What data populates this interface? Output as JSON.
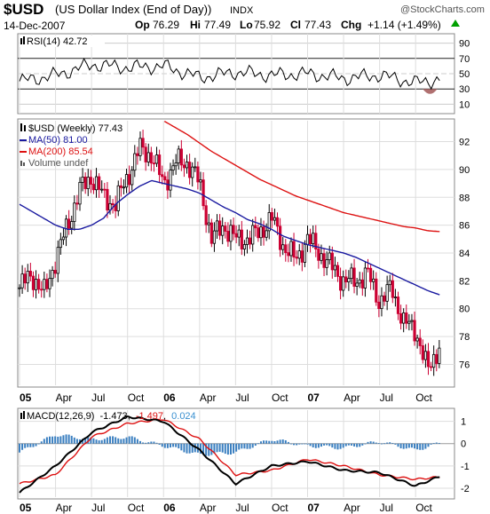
{
  "header": {
    "symbol": "$USD",
    "description": "(US Dollar Index (End of Day))",
    "exchange": "INDX",
    "watermark": "@StockCharts.com",
    "date": "14-Dec-2007",
    "ohlc": [
      {
        "label": "Op",
        "value": "76.29"
      },
      {
        "label": "Hi",
        "value": "77.49"
      },
      {
        "label": "Lo",
        "value": "75.92"
      },
      {
        "label": "Cl",
        "value": "77.43"
      },
      {
        "label": "Chg",
        "value": "+1.14 (+1.49%)"
      }
    ],
    "change_direction": "up",
    "colors": {
      "up": "#00a000"
    }
  },
  "rsi": {
    "label": "RSI(14) 42.72",
    "ticks": [
      "90",
      "70",
      "50",
      "30",
      "10"
    ],
    "colors": {
      "line": "#000000",
      "oversold_fill": "#b07070",
      "bands": "#000000"
    }
  },
  "main": {
    "legend": [
      {
        "text": "$USD (Weekly) 77.43",
        "color": "#000000",
        "icon": "candle-icon"
      },
      {
        "text": "MA(50) 81.00",
        "color": "#1a1aa0"
      },
      {
        "text": "MA(200) 85.54",
        "color": "#dd1111"
      },
      {
        "text": "Volume undef",
        "color": "#555555",
        "icon": "volume-icon"
      }
    ],
    "y_ticks": [
      "92",
      "90",
      "88",
      "86",
      "84",
      "82",
      "80",
      "78",
      "76"
    ],
    "x_ticks": [
      "05",
      "Apr",
      "Jul",
      "Oct",
      "06",
      "Apr",
      "Jul",
      "Oct",
      "07",
      "Apr",
      "Jul",
      "Oct"
    ],
    "colors": {
      "up_candle": "#000000",
      "down_candle": "#cc0033",
      "ma50": "#1a1aa0",
      "ma200": "#dd1111"
    }
  },
  "macd": {
    "label_prefix": "MACD(12,26,9)",
    "macd_value": "-1.473",
    "signal_value": "-1.497",
    "hist_value": "0.024",
    "ticks": [
      "1",
      "0",
      "-1",
      "-2"
    ],
    "x_ticks": [
      "05",
      "Apr",
      "Jul",
      "Oct",
      "06",
      "Apr",
      "Jul",
      "Oct",
      "07",
      "Apr",
      "Jul",
      "Oct"
    ],
    "colors": {
      "macd": "#000000",
      "signal": "#dd1111",
      "hist": "#3a7fc0",
      "hist_text": "#3a90d0"
    }
  },
  "chart_data": [
    {
      "type": "line",
      "title": "RSI(14) 42.72",
      "x": [
        "2005-01",
        "2005-04",
        "2005-07",
        "2005-10",
        "2006-01",
        "2006-04",
        "2006-07",
        "2006-10",
        "2007-01",
        "2007-04",
        "2007-07",
        "2007-10",
        "2007-12"
      ],
      "series": [
        {
          "name": "RSI(14)",
          "values": [
            40,
            48,
            62,
            58,
            60,
            45,
            52,
            48,
            50,
            44,
            48,
            38,
            42.72
          ]
        }
      ],
      "ylim": [
        0,
        100
      ],
      "grid": true
    },
    {
      "type": "line",
      "title": "$USD (Weekly) 77.43",
      "x": [
        "2005-01",
        "2005-02",
        "2005-03",
        "2005-04",
        "2005-05",
        "2005-06",
        "2005-07",
        "2005-08",
        "2005-09",
        "2005-10",
        "2005-11",
        "2005-12",
        "2006-01",
        "2006-02",
        "2006-03",
        "2006-04",
        "2006-05",
        "2006-06",
        "2006-07",
        "2006-08",
        "2006-09",
        "2006-10",
        "2006-11",
        "2006-12",
        "2007-01",
        "2007-02",
        "2007-03",
        "2007-04",
        "2007-05",
        "2007-06",
        "2007-07",
        "2007-08",
        "2007-09",
        "2007-10",
        "2007-11",
        "2007-12"
      ],
      "series": [
        {
          "name": "$USD (Weekly) 77.43",
          "values": [
            81.5,
            82.5,
            81.0,
            83.5,
            86.0,
            88.5,
            89.5,
            88.0,
            87.5,
            89.5,
            91.5,
            91.0,
            89.0,
            90.5,
            90.5,
            89.0,
            85.0,
            86.0,
            85.0,
            85.0,
            85.5,
            86.5,
            84.5,
            83.5,
            85.0,
            84.0,
            83.0,
            82.0,
            82.0,
            82.5,
            80.5,
            81.5,
            79.0,
            78.5,
            75.5,
            77.43
          ]
        },
        {
          "name": "MA(50) 81.00",
          "values": [
            87.5,
            87.0,
            86.5,
            86.0,
            85.7,
            85.7,
            86.0,
            86.5,
            87.5,
            88.2,
            88.8,
            89.2,
            89.0,
            88.8,
            88.6,
            88.3,
            87.8,
            87.3,
            86.9,
            86.4,
            86.1,
            85.7,
            85.2,
            84.9,
            84.6,
            84.4,
            84.2,
            84.0,
            83.7,
            83.3,
            82.9,
            82.5,
            82.1,
            81.7,
            81.3,
            81.0
          ]
        },
        {
          "name": "MA(200) 85.54",
          "values": [
            null,
            null,
            null,
            null,
            null,
            null,
            null,
            null,
            null,
            null,
            null,
            null,
            93.5,
            93.0,
            92.5,
            91.9,
            91.3,
            90.8,
            90.3,
            89.8,
            89.3,
            88.9,
            88.5,
            88.1,
            87.8,
            87.5,
            87.2,
            86.9,
            86.7,
            86.5,
            86.3,
            86.1,
            85.9,
            85.8,
            85.6,
            85.54
          ]
        }
      ],
      "ylim": [
        74.5,
        93.5
      ],
      "xlabel": "",
      "ylabel": "",
      "grid": true,
      "legend": "top-left"
    },
    {
      "type": "line",
      "title": "MACD(12,26,9) -1.473, -1.497, 0.024",
      "x": [
        "2005-01",
        "2005-04",
        "2005-07",
        "2005-10",
        "2006-01",
        "2006-04",
        "2006-07",
        "2006-10",
        "2007-01",
        "2007-04",
        "2007-07",
        "2007-10",
        "2007-12"
      ],
      "series": [
        {
          "name": "MACD",
          "values": [
            -2.2,
            -1.0,
            0.5,
            1.2,
            1.0,
            -0.3,
            -1.8,
            -1.0,
            -0.8,
            -1.2,
            -1.3,
            -1.9,
            -1.473
          ]
        },
        {
          "name": "Signal",
          "values": [
            -1.8,
            -1.4,
            0.3,
            0.9,
            1.1,
            0.2,
            -1.4,
            -1.2,
            -0.7,
            -1.0,
            -1.4,
            -1.6,
            -1.497
          ]
        },
        {
          "name": "Histogram",
          "values": [
            -0.4,
            0.4,
            0.2,
            0.3,
            -0.1,
            -0.5,
            -0.4,
            0.2,
            -0.1,
            -0.2,
            0.1,
            -0.3,
            0.024
          ]
        }
      ],
      "ylim": [
        -2.4,
        1.5
      ],
      "grid": true
    }
  ]
}
